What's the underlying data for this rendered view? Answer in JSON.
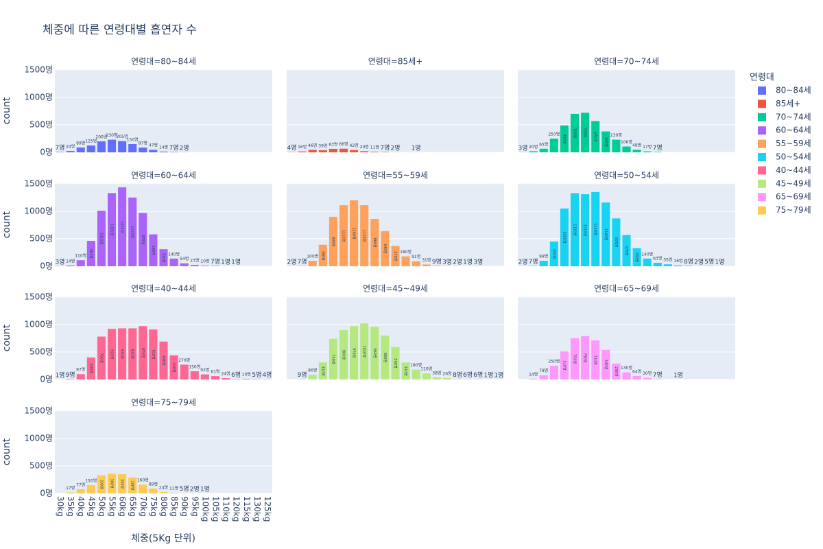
{
  "chart_data": {
    "type": "bar",
    "title": "체중에 따른 연령대별 흡연자 수",
    "xlabel": "체중(5Kg 단위)",
    "ylabel": "count",
    "legend_title": "연령대",
    "categories": [
      "30kg",
      "35kg",
      "40kg",
      "45kg",
      "50kg",
      "55kg",
      "60kg",
      "65kg",
      "70kg",
      "75kg",
      "80kg",
      "85kg",
      "90kg",
      "95kg",
      "100kg",
      "105kg",
      "110kg",
      "120kg",
      "115kg",
      "130kg",
      "125kg"
    ],
    "ylim": [
      0,
      1510
    ],
    "yticks": [
      {
        "value": 0,
        "label": "0명"
      },
      {
        "value": 500,
        "label": "500명"
      },
      {
        "value": 1000,
        "label": "1000명"
      },
      {
        "value": 1500,
        "label": "1500명"
      }
    ],
    "grid": true,
    "series": [
      {
        "name": "80~84세",
        "facet_title": "연령대=80~84세",
        "color": "#636efa",
        "values": [
          7,
          24,
          89,
          125,
          200,
          230,
          205,
          150,
          87,
          47,
          14,
          7,
          2,
          null,
          null,
          null,
          null,
          null,
          null,
          null,
          null
        ],
        "value_labels": [
          "7명",
          "24명",
          "89명",
          "125명",
          "200명",
          "230명",
          "205명",
          "150명",
          "87명",
          "47명",
          "14명",
          "7명",
          "2명",
          null,
          null,
          null,
          null,
          null,
          null,
          null,
          null
        ]
      },
      {
        "name": "85세+",
        "facet_title": "연령대=85세+",
        "color": "#EF553B",
        "values": [
          4,
          16,
          46,
          39,
          63,
          66,
          42,
          20,
          11,
          7,
          2,
          null,
          1,
          null,
          null,
          null,
          null,
          null,
          null,
          null,
          null
        ],
        "value_labels": [
          "4명",
          "16명",
          "46명",
          "39명",
          "63명",
          "66명",
          "42명",
          "20명",
          "11명",
          "7명",
          "2명",
          null,
          "1명",
          null,
          null,
          null,
          null,
          null,
          null,
          null,
          null
        ]
      },
      {
        "name": "70~74세",
        "facet_title": "연령대=70~74세",
        "color": "#00cc96",
        "values": [
          3,
          20,
          65,
          250,
          490,
          700,
          720,
          570,
          380,
          230,
          106,
          48,
          17,
          7,
          null,
          null,
          null,
          null,
          null,
          null,
          null
        ],
        "value_labels": [
          "3명",
          "20명",
          "65명",
          "250명",
          "490명",
          "700명",
          "720명",
          "570명",
          "380명",
          "230명",
          "106명",
          "48명",
          "17명",
          "7명",
          null,
          null,
          null,
          null,
          null,
          null,
          null
        ]
      },
      {
        "name": "60~64세",
        "facet_title": "연령대=60~64세",
        "color": "#ab63fa",
        "values": [
          3,
          14,
          110,
          461,
          1011,
          1331,
          1435,
          1250,
          970,
          580,
          310,
          140,
          54,
          23,
          10,
          7,
          1,
          1,
          null,
          null,
          null
        ],
        "value_labels": [
          "3명",
          "14명",
          "110명",
          "461명",
          "1011명",
          "1331명",
          "1435명",
          "1250명",
          "970명",
          "580명",
          "310명",
          "140명",
          "54명",
          "23명",
          "10명",
          "7명",
          "1명",
          "1명",
          null,
          null,
          null
        ]
      },
      {
        "name": "55~59세",
        "facet_title": "연령대=55~59세",
        "color": "#FFA15A",
        "values": [
          2,
          7,
          100,
          390,
          900,
          1110,
          1200,
          1110,
          860,
          640,
          370,
          180,
          91,
          31,
          9,
          3,
          2,
          1,
          3,
          null,
          null
        ],
        "value_labels": [
          "2명",
          "7명",
          "100명",
          "390명",
          "900명",
          "1110명",
          "1200명",
          "1110명",
          "860명",
          "640명",
          "370명",
          "180명",
          "91명",
          "31명",
          "9명",
          "3명",
          "2명",
          "1명",
          "3명",
          null,
          null
        ]
      },
      {
        "name": "50~54세",
        "facet_title": "연령대=50~54세",
        "color": "#19d3f3",
        "values": [
          2,
          7,
          99,
          450,
          1050,
          1330,
          1310,
          1350,
          1160,
          870,
          570,
          330,
          140,
          63,
          35,
          16,
          8,
          2,
          5,
          1,
          null
        ],
        "value_labels": [
          "2명",
          "7명",
          "99명",
          "450명",
          "1050명",
          "1330명",
          "1310명",
          "1350명",
          "1160명",
          "870명",
          "570명",
          "330명",
          "140명",
          "63명",
          "35명",
          "16명",
          "8명",
          "2명",
          "5명",
          "1명",
          null
        ]
      },
      {
        "name": "40~44세",
        "facet_title": "연령대=40~44세",
        "color": "#FF6692",
        "values": [
          1,
          9,
          97,
          400,
          780,
          920,
          930,
          930,
          970,
          910,
          690,
          440,
          270,
          150,
          92,
          61,
          24,
          6,
          10,
          5,
          4
        ],
        "value_labels": [
          "1명",
          "9명",
          "97명",
          "400명",
          "780명",
          "920명",
          "930명",
          "930명",
          "970명",
          "910명",
          "690명",
          "440명",
          "270명",
          "150명",
          "92명",
          "61명",
          "24명",
          "6명",
          "10명",
          "5명",
          "4명"
        ]
      },
      {
        "name": "45~49세",
        "facet_title": "연령대=45~49세",
        "color": "#B6E880",
        "values": [
          null,
          9,
          86,
          310,
          740,
          900,
          970,
          1020,
          960,
          800,
          590,
          310,
          180,
          110,
          38,
          26,
          8,
          6,
          6,
          1,
          1
        ],
        "value_labels": [
          null,
          "9명",
          "86명",
          "310명",
          "740명",
          "900명",
          "970명",
          "1020명",
          "960명",
          "800명",
          "590명",
          "310명",
          "180명",
          "110명",
          "38명",
          "26명",
          "8명",
          "6명",
          "6명",
          "1명",
          "1명"
        ]
      },
      {
        "name": "65~69세",
        "facet_title": "연령대=65~69세",
        "color": "#FF97FF",
        "values": [
          null,
          14,
          78,
          250,
          510,
          750,
          790,
          710,
          540,
          290,
          130,
          64,
          30,
          7,
          null,
          1,
          null,
          null,
          null,
          null,
          null
        ],
        "value_labels": [
          null,
          "14명",
          "78명",
          "250명",
          "510명",
          "750명",
          "790명",
          "710명",
          "540명",
          "290명",
          "130명",
          "64명",
          "30명",
          "7명",
          null,
          "1명",
          null,
          null,
          null,
          null,
          null
        ]
      },
      {
        "name": "75~79세",
        "facet_title": "연령대=75~79세",
        "color": "#FECB52",
        "values": [
          null,
          17,
          77,
          150,
          330,
          360,
          350,
          290,
          160,
          89,
          24,
          11,
          5,
          2,
          1,
          null,
          null,
          null,
          null,
          null,
          null
        ],
        "value_labels": [
          null,
          "17명",
          "77명",
          "150명",
          "330명",
          "360명",
          "350명",
          "290명",
          "160명",
          "89명",
          "24명",
          "11명",
          "5명",
          "2명",
          "1명",
          null,
          null,
          null,
          null,
          null,
          null
        ]
      }
    ]
  }
}
